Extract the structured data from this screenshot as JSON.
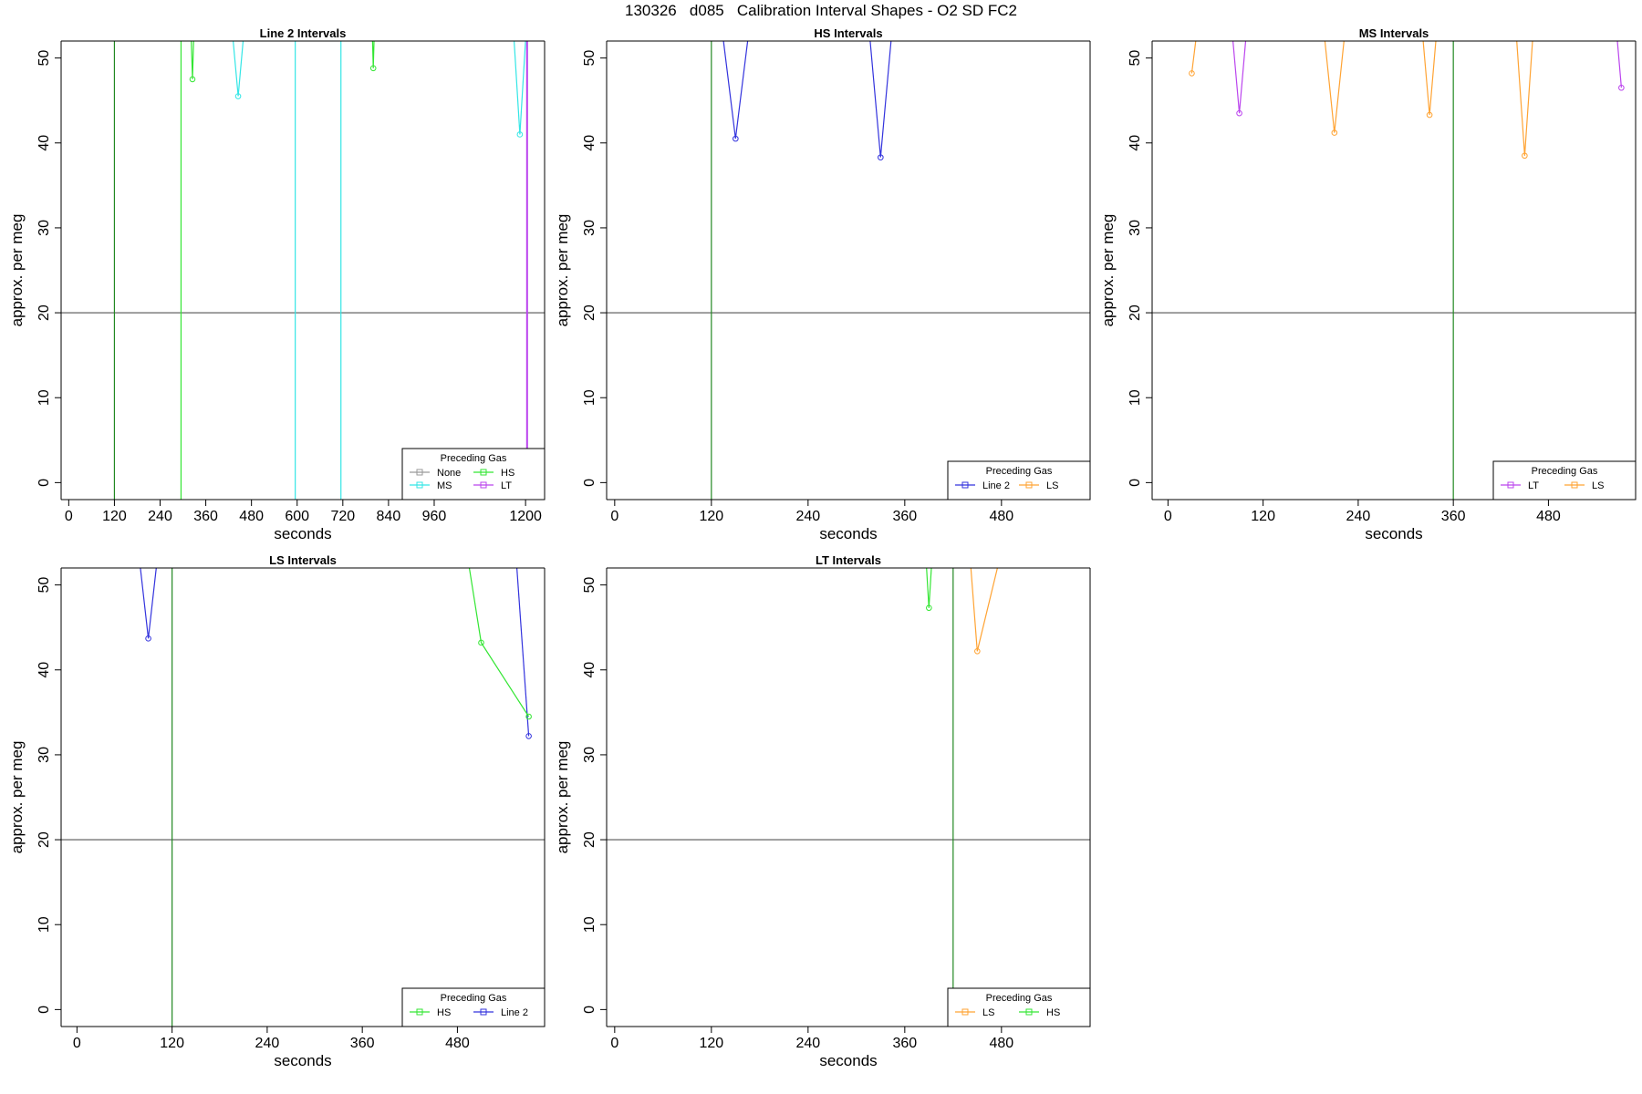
{
  "figure": {
    "title": "130326   d085   Calibration Interval Shapes - O2 SD FC2"
  },
  "colors": {
    "None": "#999999",
    "MS": "#33e6e6",
    "HS": "#33e633",
    "LT": "#bb44ee",
    "Line 2": "#3333dd",
    "LS": "#ffa333",
    "marker": "#228822"
  },
  "chart_data": [
    {
      "type": "line",
      "title": "Line 2 Intervals",
      "xlabel": "seconds",
      "ylabel": "approx. per meg",
      "xlim": [
        -20,
        1250
      ],
      "ylim": [
        -2,
        52
      ],
      "xticks": [
        0,
        120,
        240,
        360,
        480,
        600,
        720,
        840,
        960,
        1200
      ],
      "yticks": [
        0,
        10,
        20,
        30,
        40,
        50
      ],
      "hline": 20,
      "legend": {
        "title": "Preceding Gas",
        "position": "bottom-right",
        "entries": [
          "None",
          "HS",
          "MS",
          "LT"
        ]
      },
      "vlines": [
        {
          "x": 120,
          "color": "marker"
        },
        {
          "x": 295,
          "color": "HS"
        },
        {
          "x": 595,
          "color": "MS"
        },
        {
          "x": 715,
          "color": "MS"
        },
        {
          "x": 1205,
          "color": "LT"
        }
      ],
      "series": [
        {
          "name": "HS",
          "segments": [
            [
              [
                322,
                52
              ],
              [
                325,
                47.5
              ],
              [
                328,
                52
              ]
            ],
            [
              [
                798,
                52
              ],
              [
                800,
                48.8
              ],
              [
                802,
                52
              ]
            ]
          ]
        },
        {
          "name": "MS",
          "segments": [
            [
              [
                432,
                52
              ],
              [
                445,
                45.5
              ],
              [
                458,
                52
              ]
            ],
            [
              [
                1170,
                52
              ],
              [
                1185,
                41
              ],
              [
                1200,
                52
              ]
            ]
          ]
        },
        {
          "name": "LT",
          "segments": [
            [
              [
                1203,
                52
              ],
              [
                1203,
                -2
              ]
            ]
          ]
        }
      ]
    },
    {
      "type": "line",
      "title": "HS Intervals",
      "xlabel": "seconds",
      "ylabel": "approx. per meg",
      "xlim": [
        -10,
        590
      ],
      "ylim": [
        -2,
        52
      ],
      "xticks": [
        0,
        120,
        240,
        360,
        480
      ],
      "yticks": [
        0,
        10,
        20,
        30,
        40,
        50
      ],
      "hline": 20,
      "legend": {
        "title": "Preceding Gas",
        "position": "bottom-right",
        "entries": [
          "Line 2",
          "LS"
        ]
      },
      "vlines": [
        {
          "x": 120,
          "color": "marker"
        }
      ],
      "series": [
        {
          "name": "Line 2",
          "segments": [
            [
              [
                135,
                52
              ],
              [
                150,
                40.5
              ],
              [
                165,
                52
              ]
            ],
            [
              [
                317,
                52
              ],
              [
                330,
                38.3
              ],
              [
                343,
                52
              ]
            ]
          ]
        }
      ]
    },
    {
      "type": "line",
      "title": "MS Intervals",
      "xlabel": "seconds",
      "ylabel": "approx. per meg",
      "xlim": [
        -20,
        590
      ],
      "ylim": [
        -2,
        52
      ],
      "xticks": [
        0,
        120,
        240,
        360,
        480
      ],
      "yticks": [
        0,
        10,
        20,
        30,
        40,
        50
      ],
      "hline": 20,
      "legend": {
        "title": "Preceding Gas",
        "position": "bottom-right",
        "entries": [
          "LT",
          "LS"
        ]
      },
      "vlines": [
        {
          "x": 360,
          "color": "marker"
        }
      ],
      "series": [
        {
          "name": "LT",
          "segments": [
            [
              [
                82,
                52
              ],
              [
                90,
                43.5
              ],
              [
                98,
                52
              ]
            ],
            [
              [
                567,
                52
              ],
              [
                572,
                46.5
              ]
            ]
          ]
        },
        {
          "name": "LS",
          "segments": [
            [
              [
                30,
                48.2
              ],
              [
                35,
                52
              ]
            ],
            [
              [
                198,
                52
              ],
              [
                210,
                41.2
              ],
              [
                222,
                52
              ]
            ],
            [
              [
                322,
                52
              ],
              [
                330,
                43.3
              ],
              [
                338,
                52
              ]
            ],
            [
              [
                440,
                52
              ],
              [
                450,
                38.5
              ],
              [
                460,
                52
              ]
            ]
          ]
        }
      ]
    },
    {
      "type": "line",
      "title": "LS Intervals",
      "xlabel": "seconds",
      "ylabel": "approx. per meg",
      "xlim": [
        -20,
        590
      ],
      "ylim": [
        -2,
        52
      ],
      "xticks": [
        0,
        120,
        240,
        360,
        480
      ],
      "yticks": [
        0,
        10,
        20,
        30,
        40,
        50
      ],
      "hline": 20,
      "legend": {
        "title": "Preceding Gas",
        "position": "bottom-right",
        "entries": [
          "HS",
          "Line 2"
        ]
      },
      "vlines": [
        {
          "x": 120,
          "color": "marker"
        }
      ],
      "series": [
        {
          "name": "Line 2",
          "segments": [
            [
              [
                80,
                52
              ],
              [
                90,
                43.7
              ],
              [
                100,
                52
              ]
            ],
            [
              [
                555,
                52
              ],
              [
                570,
                32.2
              ]
            ]
          ]
        },
        {
          "name": "HS",
          "segments": [
            [
              [
                495,
                52
              ],
              [
                510,
                43.2
              ],
              [
                570,
                34.5
              ]
            ]
          ]
        }
      ]
    },
    {
      "type": "line",
      "title": "LT Intervals",
      "xlabel": "seconds",
      "ylabel": "approx. per meg",
      "xlim": [
        -10,
        590
      ],
      "ylim": [
        -2,
        52
      ],
      "xticks": [
        0,
        120,
        240,
        360,
        480
      ],
      "yticks": [
        0,
        10,
        20,
        30,
        40,
        50
      ],
      "hline": 20,
      "legend": {
        "title": "Preceding Gas",
        "position": "bottom-right",
        "entries": [
          "LS",
          "HS"
        ]
      },
      "vlines": [
        {
          "x": 420,
          "color": "marker"
        }
      ],
      "series": [
        {
          "name": "HS",
          "segments": [
            [
              [
                387,
                52
              ],
              [
                390,
                47.3
              ],
              [
                393,
                52
              ]
            ]
          ]
        },
        {
          "name": "LS",
          "segments": [
            [
              [
                442,
                52
              ],
              [
                450,
                42.2
              ],
              [
                475,
                52
              ]
            ]
          ]
        }
      ]
    }
  ]
}
